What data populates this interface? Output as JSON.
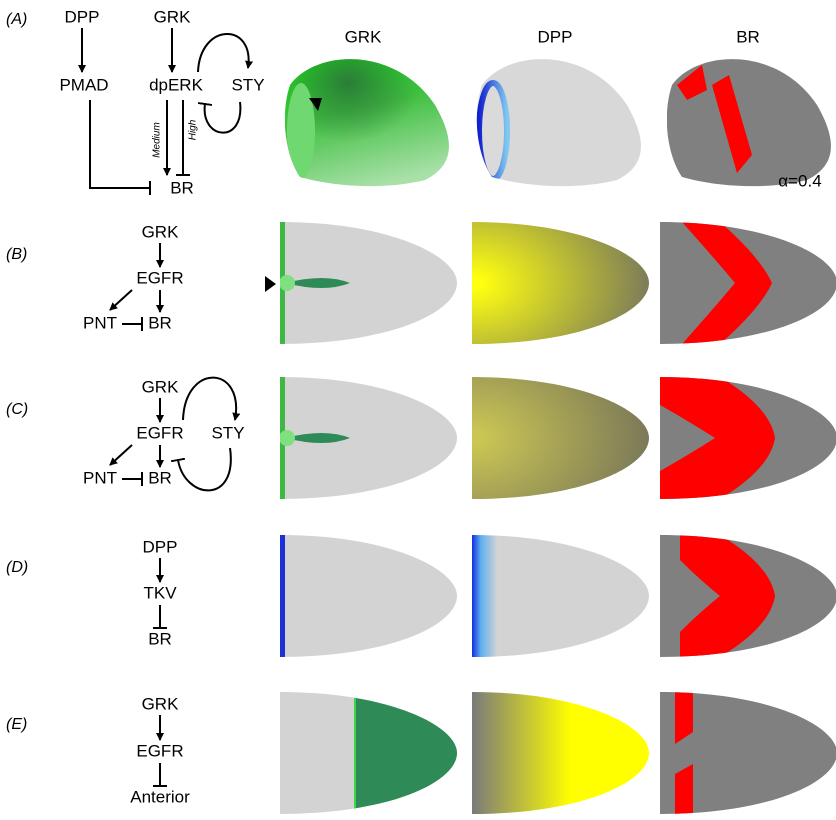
{
  "columns": [
    "GRK",
    "DPP",
    "BR"
  ],
  "alpha_label": "α=0.4",
  "panels": [
    {
      "label": "(A)",
      "nodes": [
        "DPP",
        "GRK",
        "PMAD",
        "dpERK",
        "STY",
        "BR"
      ],
      "edge_labels": [
        "Medium",
        "High"
      ]
    },
    {
      "label": "(B)",
      "nodes": [
        "GRK",
        "EGFR",
        "PNT",
        "BR"
      ]
    },
    {
      "label": "(C)",
      "nodes": [
        "GRK",
        "EGFR",
        "STY",
        "PNT",
        "BR"
      ]
    },
    {
      "label": "(D)",
      "nodes": [
        "DPP",
        "TKV",
        "BR"
      ]
    },
    {
      "label": "(E)",
      "nodes": [
        "GRK",
        "EGFR",
        "Anterior"
      ]
    }
  ]
}
